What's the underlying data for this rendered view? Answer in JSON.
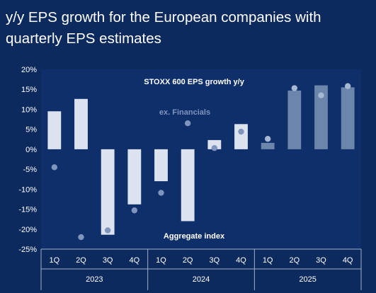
{
  "title_lines": [
    "y/y EPS growth for the European companies with",
    "quarterly EPS estimates"
  ],
  "colors": {
    "background": "#0d2a5e",
    "plot_bg": "#0f2f6b",
    "bar_actual": "#dce3ee",
    "bar_forecast": "#6b85ab",
    "point_actual": "#7f95bd",
    "point_forecast": "#a7b8d2",
    "text": "#ffffff",
    "subtle_text": "#7f95bd"
  },
  "chart_data": {
    "type": "bar",
    "title": "STOXX 600 EPS growth y/y",
    "categories": [
      "1Q",
      "2Q",
      "3Q",
      "4Q",
      "1Q",
      "2Q",
      "3Q",
      "4Q",
      "1Q",
      "2Q",
      "3Q",
      "4Q"
    ],
    "year_groups": [
      {
        "label": "2023",
        "span": 4
      },
      {
        "label": "2024",
        "span": 4
      },
      {
        "label": "2025",
        "span": 4
      }
    ],
    "series": [
      {
        "name": "Aggregate index",
        "kind": "bar",
        "values": [
          9.5,
          12.6,
          -21.4,
          -13.8,
          -8.0,
          -18.0,
          2.3,
          6.3,
          1.6,
          14.7,
          16.0,
          15.5
        ],
        "forecast_from_index": 8
      },
      {
        "name": "ex. Financials",
        "kind": "point",
        "values": [
          -4.5,
          -22.0,
          -20.3,
          -15.3,
          -10.9,
          6.5,
          0.3,
          4.4,
          2.6,
          15.3,
          13.5,
          15.8
        ],
        "forecast_from_index": 8
      }
    ],
    "ylim": [
      -25,
      20
    ],
    "yticks": [
      -25,
      -20,
      -15,
      -10,
      -5,
      0,
      5,
      10,
      15,
      20
    ],
    "ytick_labels": [
      "-25%",
      "-20%",
      "-15%",
      "-10%",
      "-5%",
      "0%",
      "5%",
      "10%",
      "15%",
      "20%"
    ],
    "grid": false,
    "legend": "inline annotations"
  }
}
